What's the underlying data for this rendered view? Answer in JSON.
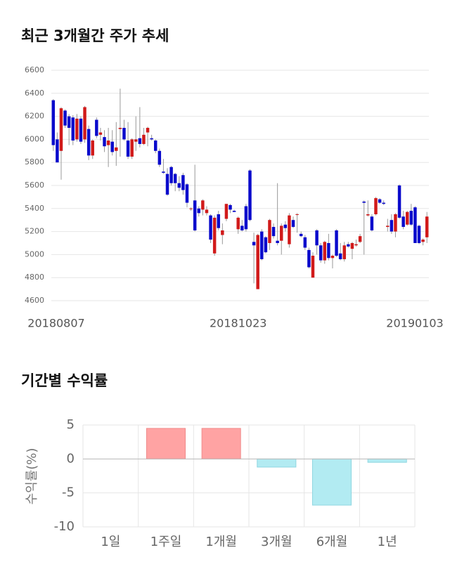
{
  "chart_data": [
    {
      "type": "candlestick",
      "title": "최근 3개월간 주가 추세",
      "categories": [
        "20180807",
        null,
        null,
        null,
        null,
        null,
        null,
        null,
        null,
        null,
        null,
        null,
        null,
        null,
        null,
        null,
        null,
        null,
        null,
        null,
        null,
        null,
        null,
        null,
        null,
        null,
        null,
        null,
        null,
        null,
        null,
        null,
        null,
        null,
        null,
        null,
        null,
        null,
        null,
        null,
        null,
        null,
        null,
        null,
        null,
        null,
        null,
        "20181023",
        null,
        null,
        null,
        null,
        null,
        null,
        null,
        null,
        null,
        null,
        null,
        null,
        null,
        null,
        null,
        null,
        null,
        null,
        null,
        null,
        null,
        null,
        null,
        null,
        null,
        null,
        null,
        null,
        null,
        null,
        null,
        null,
        null,
        null,
        null,
        null,
        null,
        null,
        null,
        null,
        null,
        null,
        null,
        null,
        null,
        null,
        null,
        "20190103"
      ],
      "open": [
        6340,
        6000,
        5900,
        6250,
        6200,
        6190,
        6000,
        6180,
        6000,
        6090,
        5860,
        6170,
        6040,
        6020,
        5950,
        5980,
        5900,
        6090,
        6100,
        5990,
        5850,
        5980,
        6010,
        5960,
        6060,
        6010,
        5990,
        5900,
        5720,
        5700,
        5760,
        5700,
        5620,
        5690,
        5610,
        5400,
        5470,
        5400,
        5390,
        5360,
        5340,
        5010,
        5350,
        5170,
        5310,
        5430,
        5380,
        5220,
        5250,
        5420,
        5730,
        5110,
        4700,
        5200,
        5150,
        5100,
        5240,
        5120,
        5120,
        5260,
        5090,
        5300,
        5350,
        5180,
        5150,
        5040,
        4800,
        5210,
        5080,
        4950,
        5100,
        4970,
        5210,
        5010,
        4960,
        5090,
        5050,
        5080,
        5110,
        5460,
        5340,
        5330,
        5350,
        5480,
        5450,
        5240,
        5300,
        5200,
        5600,
        5330,
        5260,
        5380,
        5410,
        5250,
        5110,
        5150
      ],
      "high": [
        6350,
        6060,
        6280,
        6260,
        6220,
        6210,
        6220,
        6200,
        6290,
        6120,
        6000,
        6190,
        6100,
        6080,
        6100,
        6080,
        6150,
        6440,
        6170,
        6150,
        6010,
        6200,
        6280,
        6100,
        6110,
        6040,
        6000,
        5920,
        5830,
        5750,
        5770,
        5710,
        5680,
        5710,
        5620,
        5410,
        5780,
        5420,
        5480,
        5420,
        5350,
        5340,
        5380,
        5270,
        5440,
        5440,
        5390,
        5330,
        5300,
        5440,
        5740,
        5190,
        5180,
        5220,
        5160,
        5310,
        5270,
        5620,
        5270,
        5290,
        5360,
        5330,
        5360,
        5200,
        5170,
        5060,
        5020,
        5220,
        5100,
        5120,
        5180,
        5000,
        5220,
        5100,
        5110,
        5110,
        5110,
        5130,
        5180,
        5470,
        5470,
        5350,
        5500,
        5490,
        5470,
        5310,
        5350,
        5360,
        5610,
        5380,
        5380,
        5440,
        5420,
        5260,
        5140,
        5370
      ],
      "low": [
        5900,
        5800,
        5650,
        6100,
        5950,
        5950,
        5980,
        5960,
        5970,
        5820,
        5830,
        6010,
        5990,
        5890,
        5760,
        5860,
        5770,
        5850,
        5990,
        5830,
        5830,
        5900,
        5930,
        5950,
        5940,
        5990,
        5880,
        5760,
        5700,
        5510,
        5600,
        5550,
        5550,
        5520,
        5410,
        5380,
        5200,
        5330,
        5340,
        5340,
        5100,
        4990,
        5210,
        5090,
        5290,
        5360,
        5370,
        5180,
        5200,
        5200,
        5290,
        4750,
        4700,
        4950,
        5010,
        5040,
        5140,
        5080,
        5000,
        5200,
        5060,
        5230,
        5190,
        5150,
        5040,
        4880,
        4800,
        5000,
        4930,
        4920,
        4950,
        4880,
        4980,
        4950,
        4940,
        5060,
        4960,
        5070,
        5100,
        5000,
        5330,
        5200,
        5340,
        5440,
        5430,
        5200,
        5180,
        5150,
        5310,
        5220,
        5250,
        5250,
        5100,
        5090,
        5080,
        5100
      ],
      "close": [
        5950,
        5800,
        6270,
        6120,
        6100,
        5990,
        6180,
        5980,
        6280,
        5860,
        5990,
        6030,
        6060,
        5940,
        5990,
        5890,
        5930,
        6100,
        6000,
        5850,
        6000,
        6000,
        5960,
        6040,
        6100,
        6000,
        5900,
        5780,
        5710,
        5520,
        5620,
        5620,
        5580,
        5560,
        5450,
        5400,
        5210,
        5360,
        5470,
        5390,
        5130,
        5320,
        5230,
        5210,
        5440,
        5390,
        5370,
        5320,
        5210,
        5220,
        5300,
        5080,
        5170,
        4960,
        5020,
        5300,
        5160,
        5100,
        5250,
        5230,
        5340,
        5240,
        5350,
        5160,
        5060,
        4890,
        4990,
        5080,
        4950,
        5110,
        4970,
        4990,
        4990,
        4960,
        5080,
        5070,
        5100,
        5090,
        5160,
        5450,
        5350,
        5210,
        5490,
        5450,
        5440,
        5250,
        5200,
        5350,
        5320,
        5240,
        5370,
        5260,
        5100,
        5100,
        5130,
        5330
      ],
      "up_color": "#d11a1a",
      "down_color": "#0a0acc",
      "ylim": [
        4600,
        6600
      ],
      "yticks": [
        4600,
        4800,
        5000,
        5200,
        5400,
        5600,
        5800,
        6000,
        6200,
        6400,
        6600
      ],
      "grid": true
    },
    {
      "type": "bar",
      "title": "기간별 수익률",
      "ylabel": "수익률(%)",
      "categories": [
        "1일",
        "1주일",
        "1개월",
        "3개월",
        "6개월",
        "1년"
      ],
      "values": [
        0,
        4.5,
        4.5,
        -1.2,
        -6.8,
        -0.5
      ],
      "positive_color": "#ffa3a3",
      "negative_color": "#b2ebf2",
      "ylim": [
        -10,
        5
      ],
      "yticks": [
        -10,
        -5,
        0,
        5
      ],
      "grid": true
    }
  ]
}
